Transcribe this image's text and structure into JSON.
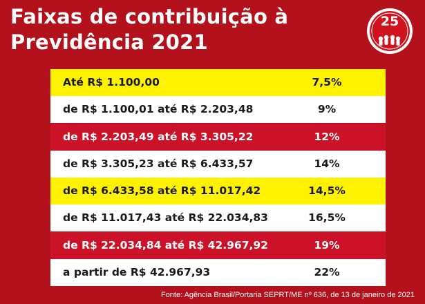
{
  "title": {
    "line1": "Faixas de contribuição à",
    "line2": "Previdência 2021"
  },
  "logo": {
    "number": "25",
    "icon": "anniversary-logo-icon"
  },
  "rows": [
    {
      "range": "Até R$ 1.100,00",
      "rate": "7,5%",
      "color": "#fff200"
    },
    {
      "range": "de R$ 1.100,01 até R$ 2.203,48",
      "rate": "9%",
      "color": "#ffffff"
    },
    {
      "range": "de R$ 2.203,49 até R$ 3.305,22",
      "rate": "12%",
      "color": "#cc1229"
    },
    {
      "range": "de R$ 3.305,23 até R$ 6.433,57",
      "rate": "14%",
      "color": "#ffffff"
    },
    {
      "range": "de R$ 6.433,58 até R$ 11.017,42",
      "rate": "14,5%",
      "color": "#fff200"
    },
    {
      "range": "de R$ 11.017,43 até R$ 22.034,83",
      "rate": "16,5%",
      "color": "#ffffff"
    },
    {
      "range": "de R$ 22.034,84 até R$ 42.967,92",
      "rate": "19%",
      "color": "#cc1229"
    },
    {
      "range": "a partir de R$ 42.967,93",
      "rate": "22%",
      "color": "#ffffff"
    }
  ],
  "source": "Fonte: Agência Brasil/Portaria SEPRT/ME nº 636, de 13 de janeiro de 2021",
  "colors": {
    "background": "#b3121c",
    "yellow": "#fff200",
    "red_row": "#cc1229",
    "white_row": "#ffffff"
  }
}
